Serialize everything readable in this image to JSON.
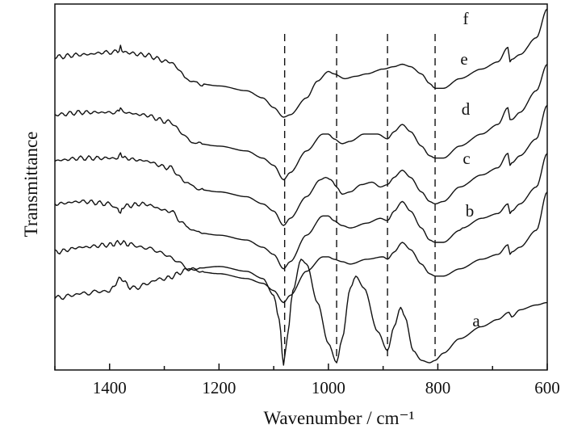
{
  "chart_data": {
    "type": "line",
    "xlabel": "Wavenumber / cm⁻¹",
    "ylabel": "Transmittance",
    "xlim": [
      1500,
      600
    ],
    "x_reversed": true,
    "y_ticks_shown": false,
    "grid": false,
    "xticks": [
      1400,
      1200,
      1000,
      800,
      600
    ],
    "reference_lines_cm1": [
      1080,
      985,
      892,
      805
    ],
    "series": [
      {
        "name": "a",
        "x": [
          1500,
          1440,
          1400,
          1380,
          1360,
          1300,
          1250,
          1200,
          1150,
          1120,
          1100,
          1090,
          1082,
          1075,
          1065,
          1050,
          1040,
          1020,
          1000,
          985,
          975,
          960,
          950,
          935,
          910,
          892,
          880,
          868,
          860,
          845,
          830,
          815,
          805,
          790,
          760,
          720,
          690,
          670,
          665,
          650,
          620,
          600
        ],
        "y": [
          0.14,
          0.16,
          0.17,
          0.22,
          0.18,
          0.22,
          0.26,
          0.27,
          0.25,
          0.22,
          0.15,
          0.05,
          -0.14,
          -0.02,
          0.17,
          0.3,
          0.28,
          0.12,
          -0.05,
          -0.13,
          -0.03,
          0.18,
          0.23,
          0.18,
          0.0,
          -0.08,
          0.02,
          0.1,
          0.06,
          -0.08,
          -0.12,
          -0.13,
          -0.12,
          -0.09,
          -0.03,
          0.02,
          0.05,
          0.08,
          0.06,
          0.09,
          0.11,
          0.12
        ]
      },
      {
        "name": "b",
        "x": [
          1500,
          1450,
          1400,
          1380,
          1360,
          1320,
          1280,
          1255,
          1245,
          1200,
          1150,
          1120,
          1100,
          1082,
          1070,
          1040,
          1010,
          1000,
          990,
          975,
          960,
          930,
          900,
          892,
          880,
          865,
          850,
          830,
          815,
          805,
          790,
          760,
          720,
          690,
          672,
          668,
          665,
          650,
          620,
          600
        ],
        "y": [
          0.33,
          0.35,
          0.36,
          0.37,
          0.36,
          0.34,
          0.3,
          0.26,
          0.25,
          0.24,
          0.22,
          0.2,
          0.17,
          0.12,
          0.15,
          0.25,
          0.31,
          0.31,
          0.3,
          0.29,
          0.28,
          0.3,
          0.31,
          0.3,
          0.33,
          0.37,
          0.34,
          0.28,
          0.24,
          0.23,
          0.23,
          0.26,
          0.3,
          0.32,
          0.36,
          0.32,
          0.33,
          0.35,
          0.42,
          0.58
        ]
      },
      {
        "name": "c",
        "x": [
          1500,
          1450,
          1400,
          1385,
          1380,
          1375,
          1340,
          1290,
          1260,
          1250,
          1240,
          1200,
          1150,
          1120,
          1100,
          1082,
          1070,
          1040,
          1010,
          1000,
          990,
          975,
          960,
          930,
          905,
          892,
          880,
          865,
          850,
          830,
          815,
          805,
          790,
          760,
          755,
          720,
          690,
          672,
          668,
          665,
          650,
          620,
          600
        ],
        "y": [
          0.53,
          0.54,
          0.53,
          0.51,
          0.49,
          0.52,
          0.53,
          0.5,
          0.44,
          0.42,
          0.41,
          0.4,
          0.38,
          0.35,
          0.32,
          0.26,
          0.29,
          0.4,
          0.48,
          0.48,
          0.46,
          0.44,
          0.43,
          0.45,
          0.47,
          0.46,
          0.5,
          0.54,
          0.5,
          0.43,
          0.38,
          0.37,
          0.37,
          0.42,
          0.43,
          0.47,
          0.49,
          0.53,
          0.49,
          0.5,
          0.53,
          0.6,
          0.74
        ]
      },
      {
        "name": "d",
        "x": [
          1500,
          1450,
          1400,
          1385,
          1380,
          1375,
          1340,
          1290,
          1260,
          1250,
          1240,
          1200,
          1150,
          1120,
          1100,
          1082,
          1070,
          1040,
          1015,
          1005,
          995,
          985,
          975,
          960,
          940,
          920,
          905,
          892,
          880,
          865,
          850,
          830,
          815,
          805,
          790,
          760,
          720,
          690,
          672,
          668,
          665,
          650,
          620,
          600
        ],
        "y": [
          0.71,
          0.72,
          0.72,
          0.72,
          0.74,
          0.72,
          0.71,
          0.68,
          0.62,
          0.6,
          0.59,
          0.58,
          0.56,
          0.53,
          0.5,
          0.44,
          0.47,
          0.56,
          0.63,
          0.64,
          0.63,
          0.6,
          0.57,
          0.58,
          0.61,
          0.62,
          0.6,
          0.61,
          0.64,
          0.67,
          0.64,
          0.58,
          0.54,
          0.53,
          0.54,
          0.6,
          0.65,
          0.68,
          0.74,
          0.69,
          0.7,
          0.73,
          0.8,
          0.94
        ]
      },
      {
        "name": "e",
        "x": [
          1500,
          1450,
          1400,
          1385,
          1380,
          1375,
          1340,
          1290,
          1260,
          1250,
          1240,
          1200,
          1150,
          1120,
          1100,
          1082,
          1070,
          1040,
          1010,
          1000,
          990,
          975,
          960,
          935,
          910,
          892,
          880,
          865,
          850,
          830,
          815,
          805,
          790,
          760,
          720,
          690,
          672,
          668,
          665,
          650,
          620,
          600
        ],
        "y": [
          0.9,
          0.91,
          0.91,
          0.91,
          0.93,
          0.91,
          0.9,
          0.87,
          0.81,
          0.79,
          0.78,
          0.77,
          0.75,
          0.72,
          0.69,
          0.63,
          0.66,
          0.75,
          0.82,
          0.82,
          0.8,
          0.78,
          0.79,
          0.82,
          0.82,
          0.8,
          0.83,
          0.86,
          0.83,
          0.77,
          0.73,
          0.72,
          0.72,
          0.77,
          0.82,
          0.86,
          0.93,
          0.88,
          0.88,
          0.91,
          1.0,
          1.11
        ]
      },
      {
        "name": "f",
        "x": [
          1500,
          1450,
          1400,
          1385,
          1380,
          1375,
          1340,
          1290,
          1260,
          1250,
          1240,
          1200,
          1150,
          1120,
          1100,
          1082,
          1070,
          1040,
          1020,
          1000,
          990,
          970,
          950,
          930,
          900,
          880,
          865,
          850,
          830,
          815,
          805,
          790,
          760,
          720,
          690,
          672,
          668,
          665,
          650,
          620,
          600
        ],
        "y": [
          1.14,
          1.15,
          1.16,
          1.16,
          1.18,
          1.16,
          1.15,
          1.12,
          1.06,
          1.04,
          1.03,
          1.02,
          1.0,
          0.97,
          0.93,
          0.89,
          0.9,
          0.97,
          1.04,
          1.08,
          1.07,
          1.05,
          1.06,
          1.07,
          1.09,
          1.1,
          1.11,
          1.1,
          1.07,
          1.03,
          1.01,
          1.01,
          1.05,
          1.09,
          1.12,
          1.18,
          1.12,
          1.13,
          1.15,
          1.22,
          1.34
        ]
      }
    ],
    "series_labels": [
      {
        "text": "a"
      },
      {
        "text": "b"
      },
      {
        "text": "c"
      },
      {
        "text": "d"
      },
      {
        "text": "e"
      },
      {
        "text": "f"
      }
    ]
  }
}
